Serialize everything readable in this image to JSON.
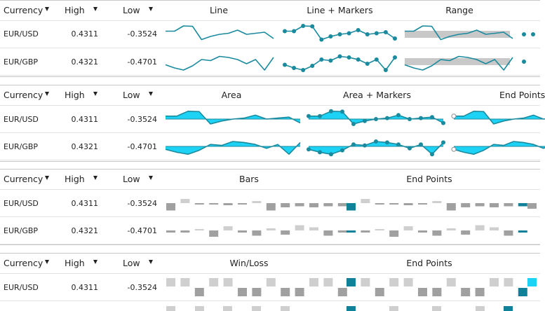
{
  "columns": {
    "currency": "Currency",
    "high": "High",
    "low": "Low"
  },
  "rows": [
    {
      "currency": "EUR/USD",
      "high": "0.4311",
      "low": "-0.3524"
    },
    {
      "currency": "EUR/GBP",
      "high": "0.4321",
      "low": "-0.4701"
    }
  ],
  "colors": {
    "line": "#1a8a9e",
    "area": "#1dd3f5",
    "range": "#c8c8c8",
    "bar_gray": "#a0a0a0",
    "bar_light": "#cfcfcf",
    "bar_highlight": "#0f8299"
  },
  "panels": [
    {
      "id": "line-panel",
      "chart_headers": [
        "Line",
        "Line + Markers",
        "Range"
      ]
    },
    {
      "id": "area-panel",
      "chart_headers": [
        "Area",
        "Area + Markers",
        "End Points"
      ]
    },
    {
      "id": "bars-panel",
      "chart_headers": [
        "Bars",
        "End Points"
      ]
    },
    {
      "id": "winloss-panel",
      "chart_headers": [
        "Win/Loss",
        "End Points"
      ]
    }
  ],
  "chart_data": [
    {
      "type": "line",
      "series": [
        {
          "values": [
            0.15,
            0.15,
            0.4,
            0.38,
            -0.25,
            -0.1,
            0.0,
            0.05,
            0.2,
            0.0,
            0.05,
            0.1,
            -0.2
          ]
        },
        {
          "values": [
            -0.15,
            -0.3,
            -0.4,
            -0.2,
            0.1,
            0.05,
            0.25,
            0.2,
            0.1,
            -0.1,
            0.1,
            -0.4,
            0.2
          ]
        }
      ]
    },
    {
      "type": "bar",
      "series": [
        {
          "values": [
            -0.35,
            0.2,
            -0.05,
            -0.05,
            -0.1,
            -0.05,
            0.1,
            -0.35,
            -0.2,
            -0.15,
            -0.2,
            -0.15,
            -0.15
          ]
        },
        {
          "values": [
            -0.1,
            -0.1,
            0.05,
            -0.3,
            0.2,
            -0.1,
            -0.25,
            0.1,
            -0.2,
            0.25,
            0.15,
            -0.25,
            -0.1
          ]
        }
      ]
    },
    {
      "type": "bar",
      "series": [
        {
          "values": [
            1,
            1,
            -1,
            1,
            1,
            -1,
            -1,
            1,
            -1,
            -1,
            1,
            1,
            -1
          ]
        },
        {
          "values": [
            -1,
            -1,
            1,
            -1,
            1,
            -1,
            -1,
            1,
            -1,
            1,
            1,
            -1,
            -1
          ]
        }
      ]
    }
  ]
}
